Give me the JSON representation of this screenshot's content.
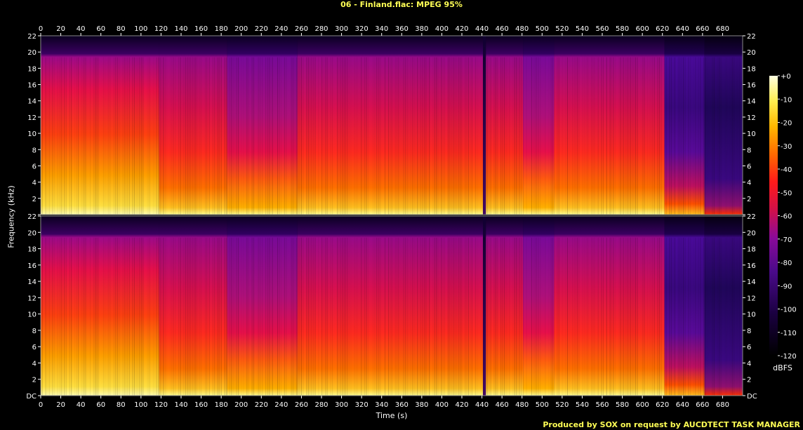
{
  "title": "06 - Finland.flac: MPEG 95%",
  "footer": "Produced by SOX on request by AUCDTECT TASK MANAGER",
  "chart_data": {
    "type": "heatmap",
    "title": "06 - Finland.flac: MPEG 95%",
    "xlabel": "Time (s)",
    "ylabel": "Frequency (kHz)",
    "xlim": [
      0,
      700
    ],
    "ylim": [
      0,
      22
    ],
    "x_ticks": [
      "0",
      "20",
      "40",
      "60",
      "80",
      "100",
      "120",
      "140",
      "160",
      "180",
      "200",
      "220",
      "240",
      "260",
      "280",
      "300",
      "320",
      "340",
      "360",
      "380",
      "400",
      "420",
      "440",
      "460",
      "480",
      "500",
      "520",
      "540",
      "560",
      "580",
      "600",
      "620",
      "640",
      "660",
      "680"
    ],
    "y_ticks": [
      "DC",
      "2",
      "4",
      "6",
      "8",
      "10",
      "12",
      "14",
      "16",
      "18",
      "20",
      "22"
    ],
    "channels": 2,
    "lowpass_cutoff_khz": 20,
    "colorbar": {
      "label": "dBFS",
      "ticks": [
        "+0",
        "-10",
        "-20",
        "-30",
        "-40",
        "-50",
        "-60",
        "-70",
        "-80",
        "-90",
        "-100",
        "-110",
        "-120"
      ],
      "range": [
        -120,
        0
      ],
      "colors": [
        "#000000",
        "#1a0040",
        "#4a0a8a",
        "#8a0a9a",
        "#d0104a",
        "#ff1a1a",
        "#ff6a00",
        "#ffb800",
        "#ffee50",
        "#ffffe0"
      ]
    },
    "sections": [
      {
        "from": 0,
        "to": 118,
        "level": "high"
      },
      {
        "from": 118,
        "to": 186,
        "level": "medium"
      },
      {
        "from": 186,
        "to": 256,
        "level": "low"
      },
      {
        "from": 256,
        "to": 441,
        "level": "medium"
      },
      {
        "from": 441,
        "to": 444,
        "level": "dropout"
      },
      {
        "from": 444,
        "to": 481,
        "level": "medium"
      },
      {
        "from": 481,
        "to": 512,
        "level": "low"
      },
      {
        "from": 512,
        "to": 622,
        "level": "medium"
      },
      {
        "from": 622,
        "to": 662,
        "level": "quiet"
      },
      {
        "from": 662,
        "to": 700,
        "level": "very-quiet"
      }
    ]
  }
}
